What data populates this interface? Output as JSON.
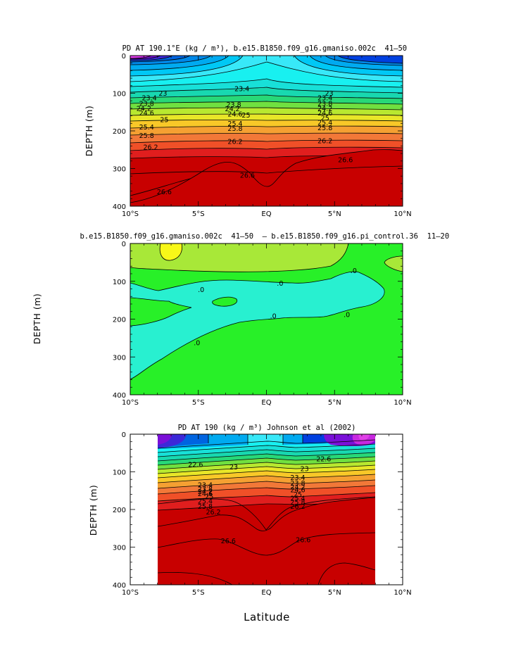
{
  "chart_data": [
    {
      "type": "contour",
      "title": "PD AT 190.1°E (kg / m³), b.e15.B1850.f09_g16.gmaniso.002c  41–50 ",
      "ylabel": "DEPTH  (m)",
      "xlabel": "",
      "xlim": [
        -10,
        10
      ],
      "ylim": [
        400,
        0
      ],
      "x_ticks": [
        "10°S",
        "5°S",
        "EQ",
        "5°N",
        "10°N"
      ],
      "y_ticks": [
        "0",
        "100",
        "200",
        "300",
        "400"
      ],
      "contour_labels": [
        {
          "text": "23",
          "x": -7.6,
          "y": 100
        },
        {
          "text": "23.4",
          "x": -8.6,
          "y": 112
        },
        {
          "text": "23.8",
          "x": -8.8,
          "y": 127
        },
        {
          "text": "24.2",
          "x": -9.0,
          "y": 140
        },
        {
          "text": "24.6",
          "x": -8.8,
          "y": 152
        },
        {
          "text": "25",
          "x": -7.5,
          "y": 170
        },
        {
          "text": "25.4",
          "x": -8.8,
          "y": 190
        },
        {
          "text": "25.8",
          "x": -8.8,
          "y": 212
        },
        {
          "text": "26.2",
          "x": -8.5,
          "y": 243
        },
        {
          "text": "26.6",
          "x": -7.5,
          "y": 362
        },
        {
          "text": "23.4",
          "x": -1.8,
          "y": 88
        },
        {
          "text": "23.8",
          "x": -2.4,
          "y": 130
        },
        {
          "text": "24.2",
          "x": -2.5,
          "y": 141
        },
        {
          "text": "24.6",
          "x": -2.3,
          "y": 155
        },
        {
          "text": "25",
          "x": -1.5,
          "y": 158
        },
        {
          "text": "25.4",
          "x": -2.3,
          "y": 180
        },
        {
          "text": "25.8",
          "x": -2.3,
          "y": 193
        },
        {
          "text": "26.2",
          "x": -2.3,
          "y": 228
        },
        {
          "text": "26.6",
          "x": -1.4,
          "y": 318
        },
        {
          "text": "23",
          "x": 4.6,
          "y": 100
        },
        {
          "text": "23.4",
          "x": 4.3,
          "y": 112
        },
        {
          "text": "23.8",
          "x": 4.3,
          "y": 127
        },
        {
          "text": "24.2",
          "x": 4.3,
          "y": 140
        },
        {
          "text": "24.6",
          "x": 4.3,
          "y": 152
        },
        {
          "text": "25",
          "x": 4.3,
          "y": 165
        },
        {
          "text": "25.4",
          "x": 4.3,
          "y": 178
        },
        {
          "text": "25.8",
          "x": 4.3,
          "y": 192
        },
        {
          "text": "26.2",
          "x": 4.3,
          "y": 226
        },
        {
          "text": "26.6",
          "x": 5.8,
          "y": 277
        }
      ]
    },
    {
      "type": "contour",
      "title": "b.e15.B1850.f09_g16.gmaniso.002c  41–50  – b.e15.B1850.f09_g16.pi_control.36  11–20 ",
      "ylabel": "DEPTH  (m)",
      "xlabel": "",
      "xlim": [
        -10,
        10
      ],
      "ylim": [
        400,
        0
      ],
      "x_ticks": [
        "10°S",
        "5°S",
        "EQ",
        "5°N",
        "10°N"
      ],
      "y_ticks": [
        "0",
        "100",
        "200",
        "300",
        "400"
      ],
      "contour_labels": [
        {
          "text": ".0",
          "x": -4.8,
          "y": 122
        },
        {
          "text": ".0",
          "x": 1.0,
          "y": 105
        },
        {
          "text": ".0",
          "x": 6.4,
          "y": 72
        },
        {
          "text": ".0",
          "x": 0.5,
          "y": 192
        },
        {
          "text": ".0",
          "x": 5.9,
          "y": 188
        },
        {
          "text": ".0",
          "x": -5.1,
          "y": 262
        }
      ]
    },
    {
      "type": "contour",
      "title": "PD AT 190 (kg / m³) Johnson et al (2002)",
      "ylabel": "DEPTH  (m)",
      "xlabel": "Latitude",
      "xlim": [
        -10,
        10
      ],
      "ylim": [
        400,
        0
      ],
      "x_ticks": [
        "10°S",
        "5°S",
        "EQ",
        "5°N",
        "10°N"
      ],
      "y_ticks": [
        "0",
        "100",
        "200",
        "300",
        "400"
      ],
      "contour_labels": [
        {
          "text": "22.6",
          "x": -5.2,
          "y": 80
        },
        {
          "text": "23",
          "x": -2.4,
          "y": 87
        },
        {
          "text": "23.4",
          "x": -4.5,
          "y": 135
        },
        {
          "text": "23.8",
          "x": -4.5,
          "y": 145
        },
        {
          "text": "24.2",
          "x": -4.5,
          "y": 152
        },
        {
          "text": "24.6",
          "x": -4.5,
          "y": 158
        },
        {
          "text": "25",
          "x": -4.2,
          "y": 165
        },
        {
          "text": "25.4",
          "x": -4.5,
          "y": 178
        },
        {
          "text": "25.8",
          "x": -4.5,
          "y": 192
        },
        {
          "text": "26.2",
          "x": -3.9,
          "y": 207
        },
        {
          "text": "26.6",
          "x": -2.8,
          "y": 283
        },
        {
          "text": "22.6",
          "x": 4.2,
          "y": 65
        },
        {
          "text": "23",
          "x": 2.8,
          "y": 92
        },
        {
          "text": "23.4",
          "x": 2.3,
          "y": 115
        },
        {
          "text": "23.8",
          "x": 2.3,
          "y": 130
        },
        {
          "text": "24.2",
          "x": 2.3,
          "y": 140
        },
        {
          "text": "24.6",
          "x": 2.3,
          "y": 148
        },
        {
          "text": "25",
          "x": 2.3,
          "y": 160
        },
        {
          "text": "25.4",
          "x": 2.3,
          "y": 170
        },
        {
          "text": "25.8",
          "x": 2.3,
          "y": 180
        },
        {
          "text": "26.2",
          "x": 2.3,
          "y": 192
        },
        {
          "text": "26.6",
          "x": 2.7,
          "y": 280
        }
      ]
    }
  ]
}
